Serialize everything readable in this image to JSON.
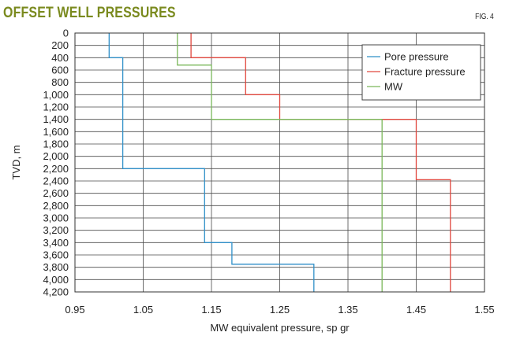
{
  "header": {
    "title": "OFFSET WELL PRESSURES",
    "figure_number": "FIG. 4"
  },
  "colors": {
    "title": "#7a8a1e",
    "pore": "#2f8fc8",
    "fracture": "#e0473e",
    "mw": "#7ab85a",
    "grid": "#4a4a4a"
  },
  "chart_data": {
    "type": "line",
    "title": "OFFSET WELL PRESSURES",
    "xlabel": "MW equivalent pressure, sp gr",
    "ylabel": "TVD, m",
    "xlim": [
      0.95,
      1.55
    ],
    "ylim": [
      0,
      4200
    ],
    "y_inverted": true,
    "grid": true,
    "legend_position": "top-right",
    "x_ticks": [
      0.95,
      1.05,
      1.15,
      1.25,
      1.35,
      1.45,
      1.55
    ],
    "x_tick_labels": [
      "0.95",
      "1.05",
      "1.15",
      "1.25",
      "1.35",
      "1.45",
      "1.55"
    ],
    "y_ticks": [
      0,
      200,
      400,
      600,
      800,
      1000,
      1200,
      1400,
      1600,
      1800,
      2000,
      2200,
      2400,
      2600,
      2800,
      3000,
      3200,
      3400,
      3600,
      3800,
      4000,
      4200
    ],
    "y_tick_labels": [
      "0",
      "200",
      "400",
      "600",
      "800",
      "1,000",
      "1,200",
      "1,400",
      "1,600",
      "1,800",
      "2,000",
      "2,200",
      "2,400",
      "2,600",
      "2,800",
      "3,000",
      "3,200",
      "3,400",
      "3,600",
      "3,800",
      "4,000",
      "4,200"
    ],
    "series": [
      {
        "name": "Pore pressure",
        "color": "#2f8fc8",
        "points": [
          [
            1.0,
            0
          ],
          [
            1.0,
            400
          ],
          [
            1.02,
            400
          ],
          [
            1.02,
            2200
          ],
          [
            1.14,
            2200
          ],
          [
            1.14,
            3400
          ],
          [
            1.18,
            3400
          ],
          [
            1.18,
            3750
          ],
          [
            1.3,
            3750
          ],
          [
            1.3,
            4200
          ]
        ]
      },
      {
        "name": "Fracture pressure",
        "color": "#e0473e",
        "points": [
          [
            1.12,
            0
          ],
          [
            1.12,
            400
          ],
          [
            1.2,
            400
          ],
          [
            1.2,
            1000
          ],
          [
            1.25,
            1000
          ],
          [
            1.25,
            1400
          ],
          [
            1.45,
            1400
          ],
          [
            1.45,
            2380
          ],
          [
            1.5,
            2380
          ],
          [
            1.5,
            4200
          ]
        ]
      },
      {
        "name": "MW",
        "color": "#7ab85a",
        "points": [
          [
            1.1,
            0
          ],
          [
            1.1,
            520
          ],
          [
            1.15,
            520
          ],
          [
            1.15,
            1400
          ],
          [
            1.4,
            1400
          ],
          [
            1.4,
            4200
          ]
        ]
      }
    ]
  }
}
